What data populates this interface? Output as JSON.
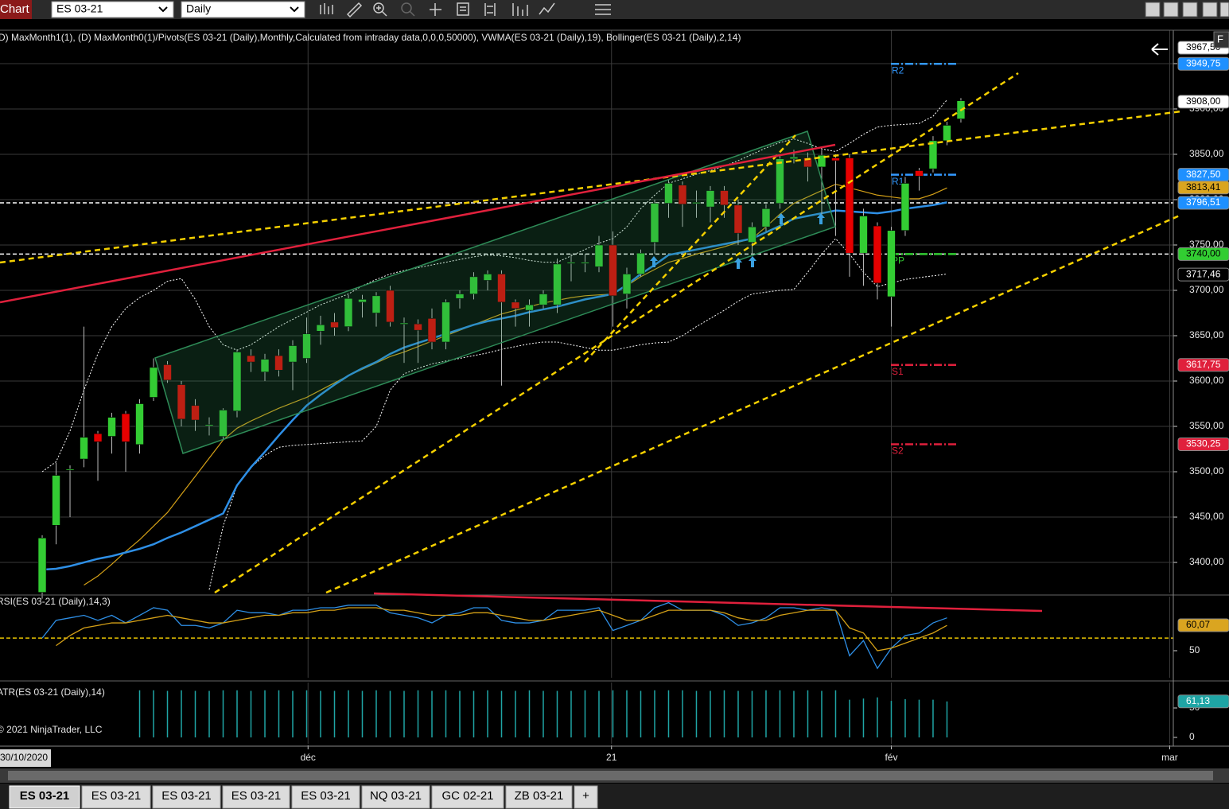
{
  "toolbar": {
    "tab": "Chart",
    "instrument": "ES 03-21",
    "period": "Daily"
  },
  "chart_data": [
    {
      "type": "candlestick",
      "indicator_label": "D) MaxMonth1(1), (D) MaxMonth0(1)/Pivots(ES 03-21 (Daily),Monthly,Calculated from intraday data,0,0,0,50000), VWMA(ES 03-21 (Daily),19), Bollinger(ES 03-21 (Daily),2,14)",
      "categories": [
        null,
        null,
        null,
        null,
        null,
        null,
        null,
        null,
        null,
        null,
        null,
        null,
        null,
        null,
        null,
        null,
        null,
        null,
        null,
        null,
        null,
        null,
        null,
        null,
        null,
        null,
        null,
        null,
        null,
        null,
        null,
        null,
        null,
        null,
        null,
        null,
        null,
        null,
        null,
        null,
        null,
        null,
        null,
        null,
        null,
        null,
        null,
        null,
        null,
        null,
        null,
        null,
        null,
        null,
        null,
        null,
        null,
        null,
        null,
        null,
        null,
        null,
        null,
        null,
        null,
        null,
        null
      ],
      "open": [
        3367,
        3441,
        3502,
        3514,
        3542,
        3539,
        3564,
        3530,
        3582,
        3618,
        3596,
        3573,
        3551,
        3539,
        3567,
        3628,
        3610,
        3628,
        3621,
        3625,
        3655,
        3665,
        3660,
        3687,
        3675,
        3700,
        3663,
        3663,
        3669,
        3643,
        3691,
        3696,
        3711,
        3718,
        3687,
        3678,
        3684,
        3684,
        3730,
        3730,
        3726,
        3750,
        3696,
        3718,
        3753,
        3796,
        3816,
        3796,
        3792,
        3810,
        3794,
        3753,
        3770,
        3796,
        3845,
        3846,
        3836,
        3846,
        3846,
        3741,
        3771,
        3693,
        3766,
        3832,
        3834,
        3865,
        3889
      ],
      "high": [
        3430,
        3510,
        3507,
        3660,
        3545,
        3565,
        3567,
        3580,
        3625,
        3622,
        3600,
        3580,
        3560,
        3570,
        3635,
        3635,
        3630,
        3635,
        3645,
        3670,
        3672,
        3675,
        3695,
        3695,
        3698,
        3705,
        3670,
        3668,
        3680,
        3690,
        3700,
        3720,
        3722,
        3722,
        3690,
        3690,
        3700,
        3735,
        3740,
        3740,
        3760,
        3765,
        3725,
        3745,
        3800,
        3822,
        3820,
        3810,
        3815,
        3815,
        3800,
        3775,
        3795,
        3850,
        3855,
        3852,
        3855,
        3850,
        3850,
        3790,
        3775,
        3770,
        3825,
        3835,
        3870,
        3886,
        3912
      ],
      "low": [
        3360,
        3420,
        3450,
        3505,
        3490,
        3520,
        3500,
        3520,
        3578,
        3598,
        3550,
        3545,
        3540,
        3535,
        3560,
        3610,
        3600,
        3605,
        3590,
        3620,
        3640,
        3650,
        3655,
        3670,
        3660,
        3660,
        3620,
        3620,
        3635,
        3635,
        3680,
        3690,
        3700,
        3595,
        3660,
        3660,
        3680,
        3675,
        3710,
        3720,
        3720,
        3660,
        3680,
        3715,
        3740,
        3780,
        3770,
        3780,
        3775,
        3780,
        3750,
        3740,
        3765,
        3790,
        3840,
        3820,
        3780,
        3760,
        3715,
        3705,
        3690,
        3660,
        3760,
        3810,
        3830,
        3860,
        3885
      ],
      "close": [
        3427,
        3496,
        3503,
        3538,
        3533,
        3560,
        3533,
        3575,
        3615,
        3601,
        3558,
        3557,
        3552,
        3568,
        3632,
        3621,
        3624,
        3612,
        3639,
        3652,
        3662,
        3659,
        3691,
        3690,
        3694,
        3665,
        3664,
        3656,
        3643,
        3687,
        3696,
        3715,
        3718,
        3687,
        3680,
        3684,
        3696,
        3729,
        3731,
        3731,
        3750,
        3694,
        3718,
        3741,
        3796,
        3818,
        3795,
        3797,
        3810,
        3794,
        3763,
        3770,
        3790,
        3845,
        3847,
        3836,
        3849,
        3843,
        3741,
        3782,
        3708,
        3766,
        3818,
        3826,
        3865,
        3882,
        3909
      ],
      "up_color": "#33cc33",
      "down_color": "#e60000",
      "doji_color": "#ffffff",
      "overlays": [
        {
          "color": "#ffffff",
          "style": "dotted",
          "values": [
            3500,
            3511,
            3545,
            3590,
            3630,
            3660,
            3680,
            3692,
            3700,
            3710,
            3713,
            3690,
            3660,
            3640,
            3634,
            3640,
            3650,
            3660,
            3668,
            3676,
            3684,
            3690,
            3696,
            3705,
            3712,
            3718,
            3722,
            3725,
            3728,
            3731,
            3734,
            3737,
            3739,
            3738,
            3736,
            3733,
            3731,
            3731,
            3738,
            3745,
            3752,
            3757,
            3770,
            3790,
            3805,
            3818,
            3823,
            3828,
            3832,
            3837,
            3843,
            3850,
            3857,
            3863,
            3867,
            3862,
            3856,
            3853,
            3862,
            3872,
            3880,
            3882,
            3883,
            3884,
            3892,
            3910,
            null
          ]
        },
        {
          "color": "#ffffff",
          "style": "dotted",
          "values": [
            null,
            null,
            null,
            null,
            null,
            null,
            null,
            null,
            null,
            null,
            null,
            null,
            3370,
            3440,
            3485,
            3505,
            3518,
            3527,
            3529,
            3530,
            3531,
            3532,
            3533,
            3534,
            3550,
            3590,
            3608,
            3614,
            3619,
            3622,
            3625,
            3628,
            3631,
            3635,
            3638,
            3641,
            3643,
            3643,
            3640,
            3637,
            3634,
            3634,
            3637,
            3640,
            3642,
            3643,
            3650,
            3660,
            3669,
            3678,
            3688,
            3696,
            3698,
            3700,
            3701,
            3720,
            3740,
            3757,
            3740,
            3720,
            3704,
            3708,
            3712,
            3714,
            3716,
            3718,
            null
          ]
        },
        {
          "color": "#d4a017",
          "style": "solid",
          "values": [
            null,
            null,
            null,
            3375,
            3385,
            3398,
            3412,
            3425,
            3440,
            3455,
            3475,
            3495,
            3515,
            3535,
            3548,
            3556,
            3563,
            3570,
            3576,
            3582,
            3590,
            3598,
            3606,
            3613,
            3620,
            3627,
            3632,
            3638,
            3644,
            3650,
            3656,
            3662,
            3668,
            3674,
            3678,
            3682,
            3686,
            3689,
            3692,
            3694,
            3695,
            3696,
            3705,
            3715,
            3723,
            3731,
            3735,
            3740,
            3744,
            3748,
            3753,
            3757,
            3770,
            3784,
            3796,
            3803,
            3810,
            3817,
            3813,
            3809,
            3805,
            3803,
            3801,
            3801,
            3806,
            3813,
            null
          ]
        },
        {
          "color": "#2e8fe6",
          "style": "thick",
          "values": [
            3392,
            3393,
            3396,
            3400,
            3404,
            3407,
            3411,
            3415,
            3420,
            3427,
            3433,
            3440,
            3447,
            3454,
            3485,
            3505,
            3522,
            3540,
            3557,
            3573,
            3585,
            3596,
            3606,
            3614,
            3621,
            3630,
            3637,
            3642,
            3647,
            3652,
            3657,
            3662,
            3666,
            3669,
            3672,
            3676,
            3679,
            3682,
            3686,
            3690,
            3693,
            3696,
            3706,
            3718,
            3728,
            3739,
            3742,
            3745,
            3748,
            3751,
            3754,
            3757,
            3764,
            3771,
            3779,
            3782,
            3785,
            3788,
            3787,
            3786,
            3785,
            3787,
            3790,
            3792,
            3794,
            3797,
            null
          ]
        }
      ],
      "xlim": [
        -3.03,
        81.26
      ],
      "xticks": [
        {
          "value": 19.1,
          "label": "déc"
        },
        {
          "value": 40.9,
          "label": "21"
        },
        {
          "value": 61,
          "label": "fév"
        },
        {
          "value": 81,
          "label": "mar"
        }
      ],
      "start_label": "30/10/2020",
      "ylim": [
        3366.7,
        3986.8
      ],
      "yticks": [
        {
          "value": 3400,
          "label": "3400,00"
        },
        {
          "value": 3450,
          "label": "3450,00"
        },
        {
          "value": 3500,
          "label": "3500,00"
        },
        {
          "value": 3550,
          "label": "3550,00"
        },
        {
          "value": 3600,
          "label": "3600,00"
        },
        {
          "value": 3650,
          "label": "3650,00"
        },
        {
          "value": 3700,
          "label": "3700,00"
        },
        {
          "value": 3750,
          "label": "3750,00"
        },
        {
          "value": 3800,
          "label": "3800,00"
        },
        {
          "value": 3850,
          "label": "3850,00"
        },
        {
          "value": 3900,
          "label": "3900,00"
        },
        {
          "value": 3950,
          "label": "3950,00"
        }
      ],
      "grid": true,
      "horizontal_lines": [
        {
          "value": 3796.51,
          "color": "#ffffff"
        },
        {
          "value": 3740,
          "color": "#ffffff"
        }
      ],
      "pivots": [
        {
          "label": "R2",
          "value": 3949.75,
          "color": "#3399ff"
        },
        {
          "label": "R1",
          "value": 3827.5,
          "color": "#3399ff"
        },
        {
          "label": "PP",
          "value": 3740,
          "color": "#33cc33"
        },
        {
          "label": "S1",
          "value": 3617.75,
          "color": "#e0203c"
        },
        {
          "label": "S2",
          "value": 3530.25,
          "color": "#e0203c"
        }
      ],
      "price_markers": [
        {
          "value": 3967.5,
          "label": "3967,50",
          "color": "#ffffff",
          "text_color": "#000000"
        },
        {
          "value": 3949.75,
          "label": "3949,75",
          "color": "#1e90ff",
          "text_color": "#ffffff"
        },
        {
          "value": 3908,
          "label": "3908,00",
          "color": "#ffffff",
          "text_color": "#000000"
        },
        {
          "value": 3827.5,
          "label": "3827,50",
          "color": "#1e90ff",
          "text_color": "#ffffff"
        },
        {
          "value": 3813.41,
          "label": "3813,41",
          "color": "#daa520",
          "text_color": "#000000"
        },
        {
          "value": 3796.51,
          "label": "3796,51",
          "color": "#1e90ff",
          "text_color": "#ffffff"
        },
        {
          "value": 3740,
          "label": "3740,00",
          "color": "#32cd32",
          "text_color": "#000000"
        },
        {
          "value": 3717.46,
          "label": "3717,46",
          "color": "#000000",
          "text_color": "#ffffff"
        },
        {
          "value": 3617.75,
          "label": "3617,75",
          "color": "#e0203c",
          "text_color": "#ffffff"
        },
        {
          "value": 3530.25,
          "label": "3530,25",
          "color": "#e0203c",
          "text_color": "#ffffff"
        }
      ]
    },
    {
      "type": "line",
      "label": "RSI(ES 03-21 (Daily),14,3)",
      "xlim": [
        -3.03,
        81.26
      ],
      "ylim": [
        39.3,
        71.4
      ],
      "yticks": [
        50
      ],
      "series": [
        {
          "color": "#2e8fe6",
          "values": [
            55,
            62,
            63,
            64,
            62,
            64,
            61,
            64,
            67,
            66,
            60,
            60,
            59,
            61,
            66,
            65,
            65,
            64,
            66,
            66,
            67,
            67,
            68,
            68,
            68,
            65,
            64,
            63,
            61,
            64,
            65,
            67,
            67,
            62,
            61,
            61,
            62,
            66,
            66,
            66,
            67,
            58,
            60,
            62,
            67,
            69,
            66,
            66,
            66,
            64,
            60,
            61,
            63,
            67,
            67,
            66,
            67,
            66,
            48,
            54,
            43,
            51,
            56,
            57,
            61,
            63,
            null
          ]
        },
        {
          "color": "#d4a017",
          "values": [
            null,
            52,
            56,
            59,
            60,
            61,
            61,
            62,
            63,
            64,
            63,
            62,
            61,
            61,
            62,
            63,
            64,
            64,
            65,
            65,
            66,
            66,
            67,
            67,
            67,
            66,
            66,
            65,
            64,
            64,
            64,
            65,
            65,
            64,
            63,
            62,
            62,
            63,
            64,
            65,
            66,
            64,
            62,
            62,
            64,
            66,
            66,
            66,
            66,
            65,
            63,
            62,
            62,
            64,
            65,
            66,
            66,
            66,
            59,
            57,
            50,
            51,
            53,
            55,
            57,
            60,
            null
          ]
        }
      ],
      "level": {
        "value": 55,
        "color": "#e6c200"
      },
      "markers": [
        {
          "value": 60.07,
          "label": "60,07",
          "color": "#daa520",
          "text_color": "#000000"
        }
      ]
    },
    {
      "type": "bar",
      "label": "ATR(ES 03-21 (Daily),14)",
      "xlim": [
        -3.03,
        81.26
      ],
      "ylim": [
        -10.8,
        93.2
      ],
      "yticks": [
        0,
        50
      ],
      "color": "#1fa5a5",
      "values": [
        null,
        null,
        null,
        null,
        null,
        null,
        null,
        80,
        80,
        79,
        80,
        79,
        79,
        80,
        80,
        79,
        80,
        80,
        79,
        80,
        79,
        79,
        80,
        79,
        80,
        79,
        79,
        80,
        79,
        80,
        79,
        79,
        80,
        79,
        79,
        80,
        79,
        79,
        79,
        80,
        79,
        80,
        80,
        79,
        80,
        80,
        80,
        79,
        79,
        80,
        79,
        79,
        80,
        80,
        79,
        80,
        79,
        80,
        64,
        66,
        68,
        62,
        65,
        64,
        64,
        61.13,
        null
      ],
      "markers": [
        {
          "value": 61.13,
          "label": "61,13",
          "color": "#1fa5a5",
          "text_color": "#ffffff"
        }
      ]
    }
  ],
  "copyright": "© 2021 NinjaTrader, LLC",
  "tabs": [
    "ES 03-21",
    "ES 03-21",
    "ES 03-21",
    "ES 03-21",
    "ES 03-21",
    "NQ 03-21",
    "GC 02-21",
    "ZB 03-21",
    "+"
  ]
}
